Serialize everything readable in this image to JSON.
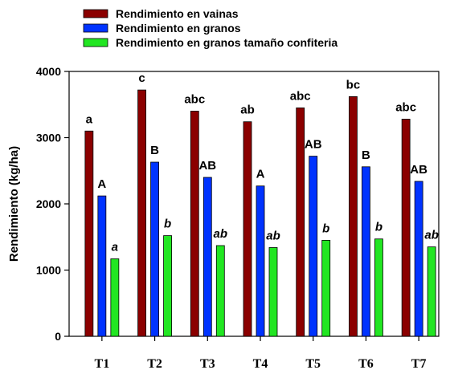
{
  "chart_data": {
    "type": "bar",
    "ylabel": "Rendimiento (kg/ha)",
    "xlabel": "",
    "title": "",
    "ylim": [
      0,
      4000
    ],
    "yticks": [
      0,
      1000,
      2000,
      3000,
      4000
    ],
    "grid": false,
    "legend_position": "top",
    "categories": [
      "T1",
      "T2",
      "T3",
      "T4",
      "T5",
      "T6",
      "T7"
    ],
    "series": [
      {
        "name": "Rendimiento en vainas",
        "color": "#8b0000",
        "values": [
          3100,
          3720,
          3400,
          3240,
          3450,
          3620,
          3280
        ],
        "labels": [
          "a",
          "c",
          "abc",
          "ab",
          "abc",
          "bc",
          "abc"
        ],
        "label_italic": false
      },
      {
        "name": "Rendimiento en granos",
        "color": "#0033ff",
        "values": [
          2120,
          2630,
          2400,
          2270,
          2720,
          2560,
          2340
        ],
        "labels": [
          "A",
          "B",
          "AB",
          "A",
          "AB",
          "B",
          "AB"
        ],
        "label_italic": false
      },
      {
        "name": "Rendimiento en granos tamaño confiteria",
        "color": "#22e622",
        "values": [
          1170,
          1520,
          1370,
          1340,
          1450,
          1470,
          1350
        ],
        "labels": [
          "a",
          "b",
          "ab",
          "ab",
          "b",
          "b",
          "ab"
        ],
        "label_italic": true
      }
    ]
  }
}
